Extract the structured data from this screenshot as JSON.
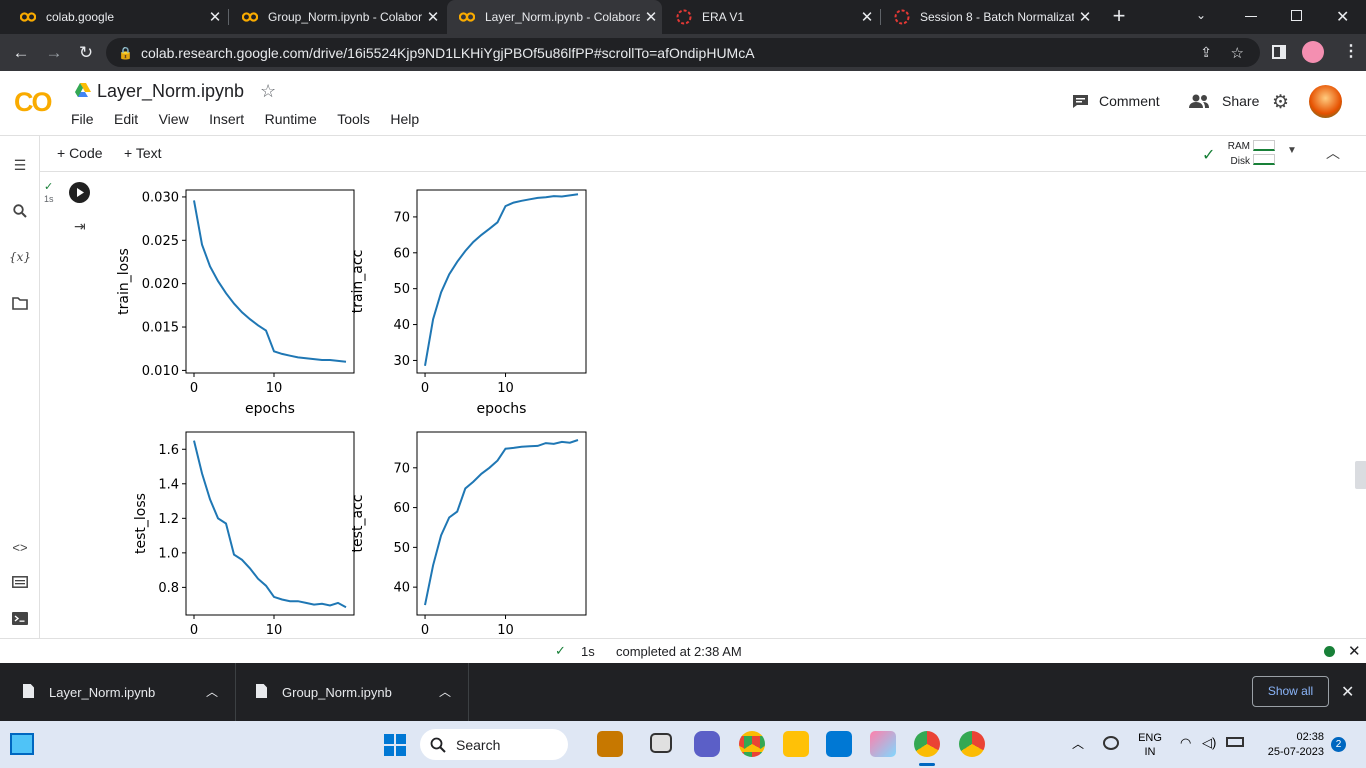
{
  "browser": {
    "tabs": [
      {
        "title": "colab.google",
        "icon": "colab-icon",
        "active": false
      },
      {
        "title": "Group_Norm.ipynb - Colabor",
        "icon": "colab-icon",
        "active": false
      },
      {
        "title": "Layer_Norm.ipynb - Colabora",
        "icon": "colab-icon",
        "active": true
      },
      {
        "title": "ERA V1",
        "icon": "loading-icon",
        "active": false
      },
      {
        "title": "Session 8 - Batch Normalizati",
        "icon": "loading-icon",
        "active": false
      }
    ],
    "new_tab": "+",
    "url": "colab.research.google.com/drive/16i5524Kjp9ND1LKHiYgjPBOf5u86lfPP#scrollTo=afOndipHUMcA"
  },
  "colab": {
    "logo": "CO",
    "notebook_title": "Layer_Norm.ipynb",
    "menu": [
      "File",
      "Edit",
      "View",
      "Insert",
      "Runtime",
      "Tools",
      "Help"
    ],
    "comment_label": "Comment",
    "share_label": "Share",
    "toolbar": {
      "code_label": "+ Code",
      "text_label": "+ Text",
      "ram_label": "RAM",
      "disk_label": "Disk"
    },
    "cell": {
      "exec_time": "1s"
    },
    "status": {
      "time": "1s",
      "text": "completed at 2:38 AM"
    }
  },
  "chart_data": [
    {
      "type": "line",
      "xlabel": "epochs",
      "ylabel": "train_loss",
      "x": [
        0,
        1,
        2,
        3,
        4,
        5,
        6,
        7,
        8,
        9,
        10,
        11,
        12,
        13,
        14,
        15,
        16,
        17,
        18,
        19
      ],
      "values": [
        0.0296,
        0.0245,
        0.022,
        0.0203,
        0.0189,
        0.0177,
        0.0167,
        0.0159,
        0.0152,
        0.0146,
        0.0122,
        0.0119,
        0.0117,
        0.0115,
        0.0114,
        0.0113,
        0.0112,
        0.0112,
        0.0111,
        0.011
      ],
      "xlim": [
        -1,
        20
      ],
      "ylim": [
        0.0097,
        0.0308
      ],
      "xticks": [
        0,
        10
      ],
      "yticks": [
        0.01,
        0.015,
        0.02,
        0.025,
        0.03
      ],
      "ytick_labels": [
        "0.010",
        "0.015",
        "0.020",
        "0.025",
        "0.030"
      ]
    },
    {
      "type": "line",
      "xlabel": "epochs",
      "ylabel": "train_acc",
      "x": [
        0,
        1,
        2,
        3,
        4,
        5,
        6,
        7,
        8,
        9,
        10,
        11,
        12,
        13,
        14,
        15,
        16,
        17,
        18,
        19
      ],
      "values": [
        28.5,
        41.5,
        49,
        54,
        57.5,
        60.5,
        63,
        65,
        66.7,
        68.5,
        73,
        74,
        74.5,
        74.9,
        75.3,
        75.5,
        75.8,
        75.7,
        76,
        76.3
      ],
      "xlim": [
        -1,
        20
      ],
      "ylim": [
        26.5,
        77.5
      ],
      "xticks": [
        0,
        10
      ],
      "yticks": [
        30,
        40,
        50,
        60,
        70
      ],
      "ytick_labels": [
        "30",
        "40",
        "50",
        "60",
        "70"
      ]
    },
    {
      "type": "line",
      "xlabel": "",
      "ylabel": "test_loss",
      "x": [
        0,
        1,
        2,
        3,
        4,
        5,
        6,
        7,
        8,
        9,
        10,
        11,
        12,
        13,
        14,
        15,
        16,
        17,
        18,
        19
      ],
      "values": [
        1.65,
        1.46,
        1.31,
        1.2,
        1.17,
        0.99,
        0.96,
        0.91,
        0.85,
        0.81,
        0.745,
        0.73,
        0.72,
        0.72,
        0.71,
        0.7,
        0.705,
        0.695,
        0.71,
        0.685
      ],
      "xlim": [
        -1,
        20
      ],
      "ylim": [
        0.64,
        1.7
      ],
      "xticks": [
        0,
        10
      ],
      "yticks": [
        0.8,
        1.0,
        1.2,
        1.4,
        1.6
      ],
      "ytick_labels": [
        "0.8",
        "1.0",
        "1.2",
        "1.4",
        "1.6"
      ]
    },
    {
      "type": "line",
      "xlabel": "",
      "ylabel": "test_acc",
      "x": [
        0,
        1,
        2,
        3,
        4,
        5,
        6,
        7,
        8,
        9,
        10,
        11,
        12,
        13,
        14,
        15,
        16,
        17,
        18,
        19
      ],
      "values": [
        35.5,
        45.5,
        53,
        57.5,
        59,
        64.8,
        66.5,
        68.5,
        70,
        71.8,
        74.8,
        75,
        75.3,
        75.4,
        75.5,
        76.2,
        76,
        76.5,
        76.3,
        77
      ],
      "xlim": [
        -1,
        20
      ],
      "ylim": [
        33,
        79
      ],
      "xticks": [
        0,
        10
      ],
      "yticks": [
        40,
        50,
        60,
        70
      ],
      "ytick_labels": [
        "40",
        "50",
        "60",
        "70"
      ]
    }
  ],
  "downloads": {
    "items": [
      {
        "name": "Layer_Norm.ipynb"
      },
      {
        "name": "Group_Norm.ipynb"
      }
    ],
    "show_all": "Show all"
  },
  "taskbar": {
    "search_label": "Search",
    "lang": "ENG",
    "region": "IN",
    "time": "02:38",
    "date": "25-07-2023",
    "notif_count": "2"
  }
}
